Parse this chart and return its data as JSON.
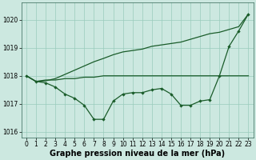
{
  "bg_color": "#cce8e0",
  "plot_bg_color": "#cce8e0",
  "grid_color": "#99ccbb",
  "line_color": "#1a5c2a",
  "x": [
    0,
    1,
    2,
    3,
    4,
    5,
    6,
    7,
    8,
    9,
    10,
    11,
    12,
    13,
    14,
    15,
    16,
    17,
    18,
    19,
    20,
    21,
    22,
    23
  ],
  "line1": [
    1018.0,
    1017.8,
    1017.85,
    1017.85,
    1017.9,
    1017.9,
    1017.95,
    1017.95,
    1018.0,
    1018.0,
    1018.0,
    1018.0,
    1018.0,
    1018.0,
    1018.0,
    1018.0,
    1018.0,
    1018.0,
    1018.0,
    1018.0,
    1018.0,
    1018.0,
    1018.0,
    1018.0
  ],
  "line2": [
    1018.0,
    1017.8,
    1017.75,
    1017.6,
    1017.35,
    1017.2,
    1016.95,
    1016.45,
    1016.45,
    1017.1,
    1017.35,
    1017.4,
    1017.4,
    1017.5,
    1017.55,
    1017.35,
    1016.95,
    1016.95,
    1017.1,
    1017.15,
    1018.0,
    1019.05,
    1019.6,
    1020.2
  ],
  "line3": [
    1018.0,
    1017.8,
    1017.82,
    1017.9,
    1018.05,
    1018.2,
    1018.35,
    1018.5,
    1018.62,
    1018.75,
    1018.85,
    1018.9,
    1018.95,
    1019.05,
    1019.1,
    1019.15,
    1019.2,
    1019.3,
    1019.4,
    1019.5,
    1019.55,
    1019.65,
    1019.75,
    1020.2
  ],
  "ylim": [
    1015.8,
    1020.6
  ],
  "yticks": [
    1016,
    1017,
    1018,
    1019,
    1020
  ],
  "xticks": [
    0,
    1,
    2,
    3,
    4,
    5,
    6,
    7,
    8,
    9,
    10,
    11,
    12,
    13,
    14,
    15,
    16,
    17,
    18,
    19,
    20,
    21,
    22,
    23
  ],
  "xlabel": "Graphe pression niveau de la mer (hPa)",
  "title_fontsize": 7,
  "tick_fontsize": 5.5
}
